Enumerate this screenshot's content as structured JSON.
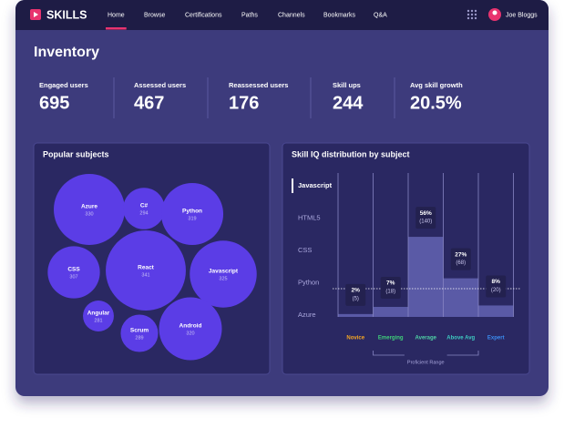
{
  "nav": {
    "brand": "SKILLS",
    "items": [
      "Home",
      "Browse",
      "Certifications",
      "Paths",
      "Channels",
      "Bookmarks",
      "Q&A"
    ],
    "active": "Home",
    "user": "Joe Bloggs"
  },
  "page_title": "Inventory",
  "stats": [
    {
      "label": "Engaged users",
      "value": 695
    },
    {
      "label": "Assessed users",
      "value": 467
    },
    {
      "label": "Reassessed users",
      "value": 176
    },
    {
      "label": "Skill ups",
      "value": 244
    },
    {
      "label": "Avg skill growth",
      "value": 20.5,
      "value_label": "20.5%"
    }
  ],
  "chart_data": [
    {
      "type": "bubble",
      "title": "Popular subjects",
      "categories": [
        "Azure",
        "C#",
        "Python",
        "CSS",
        "React",
        "Javascript",
        "Angular",
        "Scrum",
        "Android"
      ],
      "values": [
        330,
        294,
        319,
        307,
        341,
        325,
        281,
        289,
        320
      ],
      "color": "#5b3de6"
    },
    {
      "type": "step",
      "title": "Skill IQ distribution by subject",
      "subjects": [
        "Javascript",
        "HTML5",
        "CSS",
        "Python",
        "Azure"
      ],
      "selected_subject": "Javascript",
      "categories": [
        "Novice",
        "Emerging",
        "Average",
        "Above Avg",
        "Expert"
      ],
      "category_colors": [
        "#f5a623",
        "#3fd07a",
        "#4fd1a5",
        "#3ec9c0",
        "#3b8cf0"
      ],
      "values": [
        2,
        7,
        56,
        27,
        8
      ],
      "value_labels": [
        "2%",
        "7%",
        "56%",
        "27%",
        "8%"
      ],
      "counts": [
        5,
        18,
        140,
        68,
        20
      ],
      "count_labels": [
        "(5)",
        "(18)",
        "(140)",
        "(68)",
        "(20)"
      ],
      "color": "#5a5aa6",
      "range_label": "Proficient Range"
    }
  ]
}
